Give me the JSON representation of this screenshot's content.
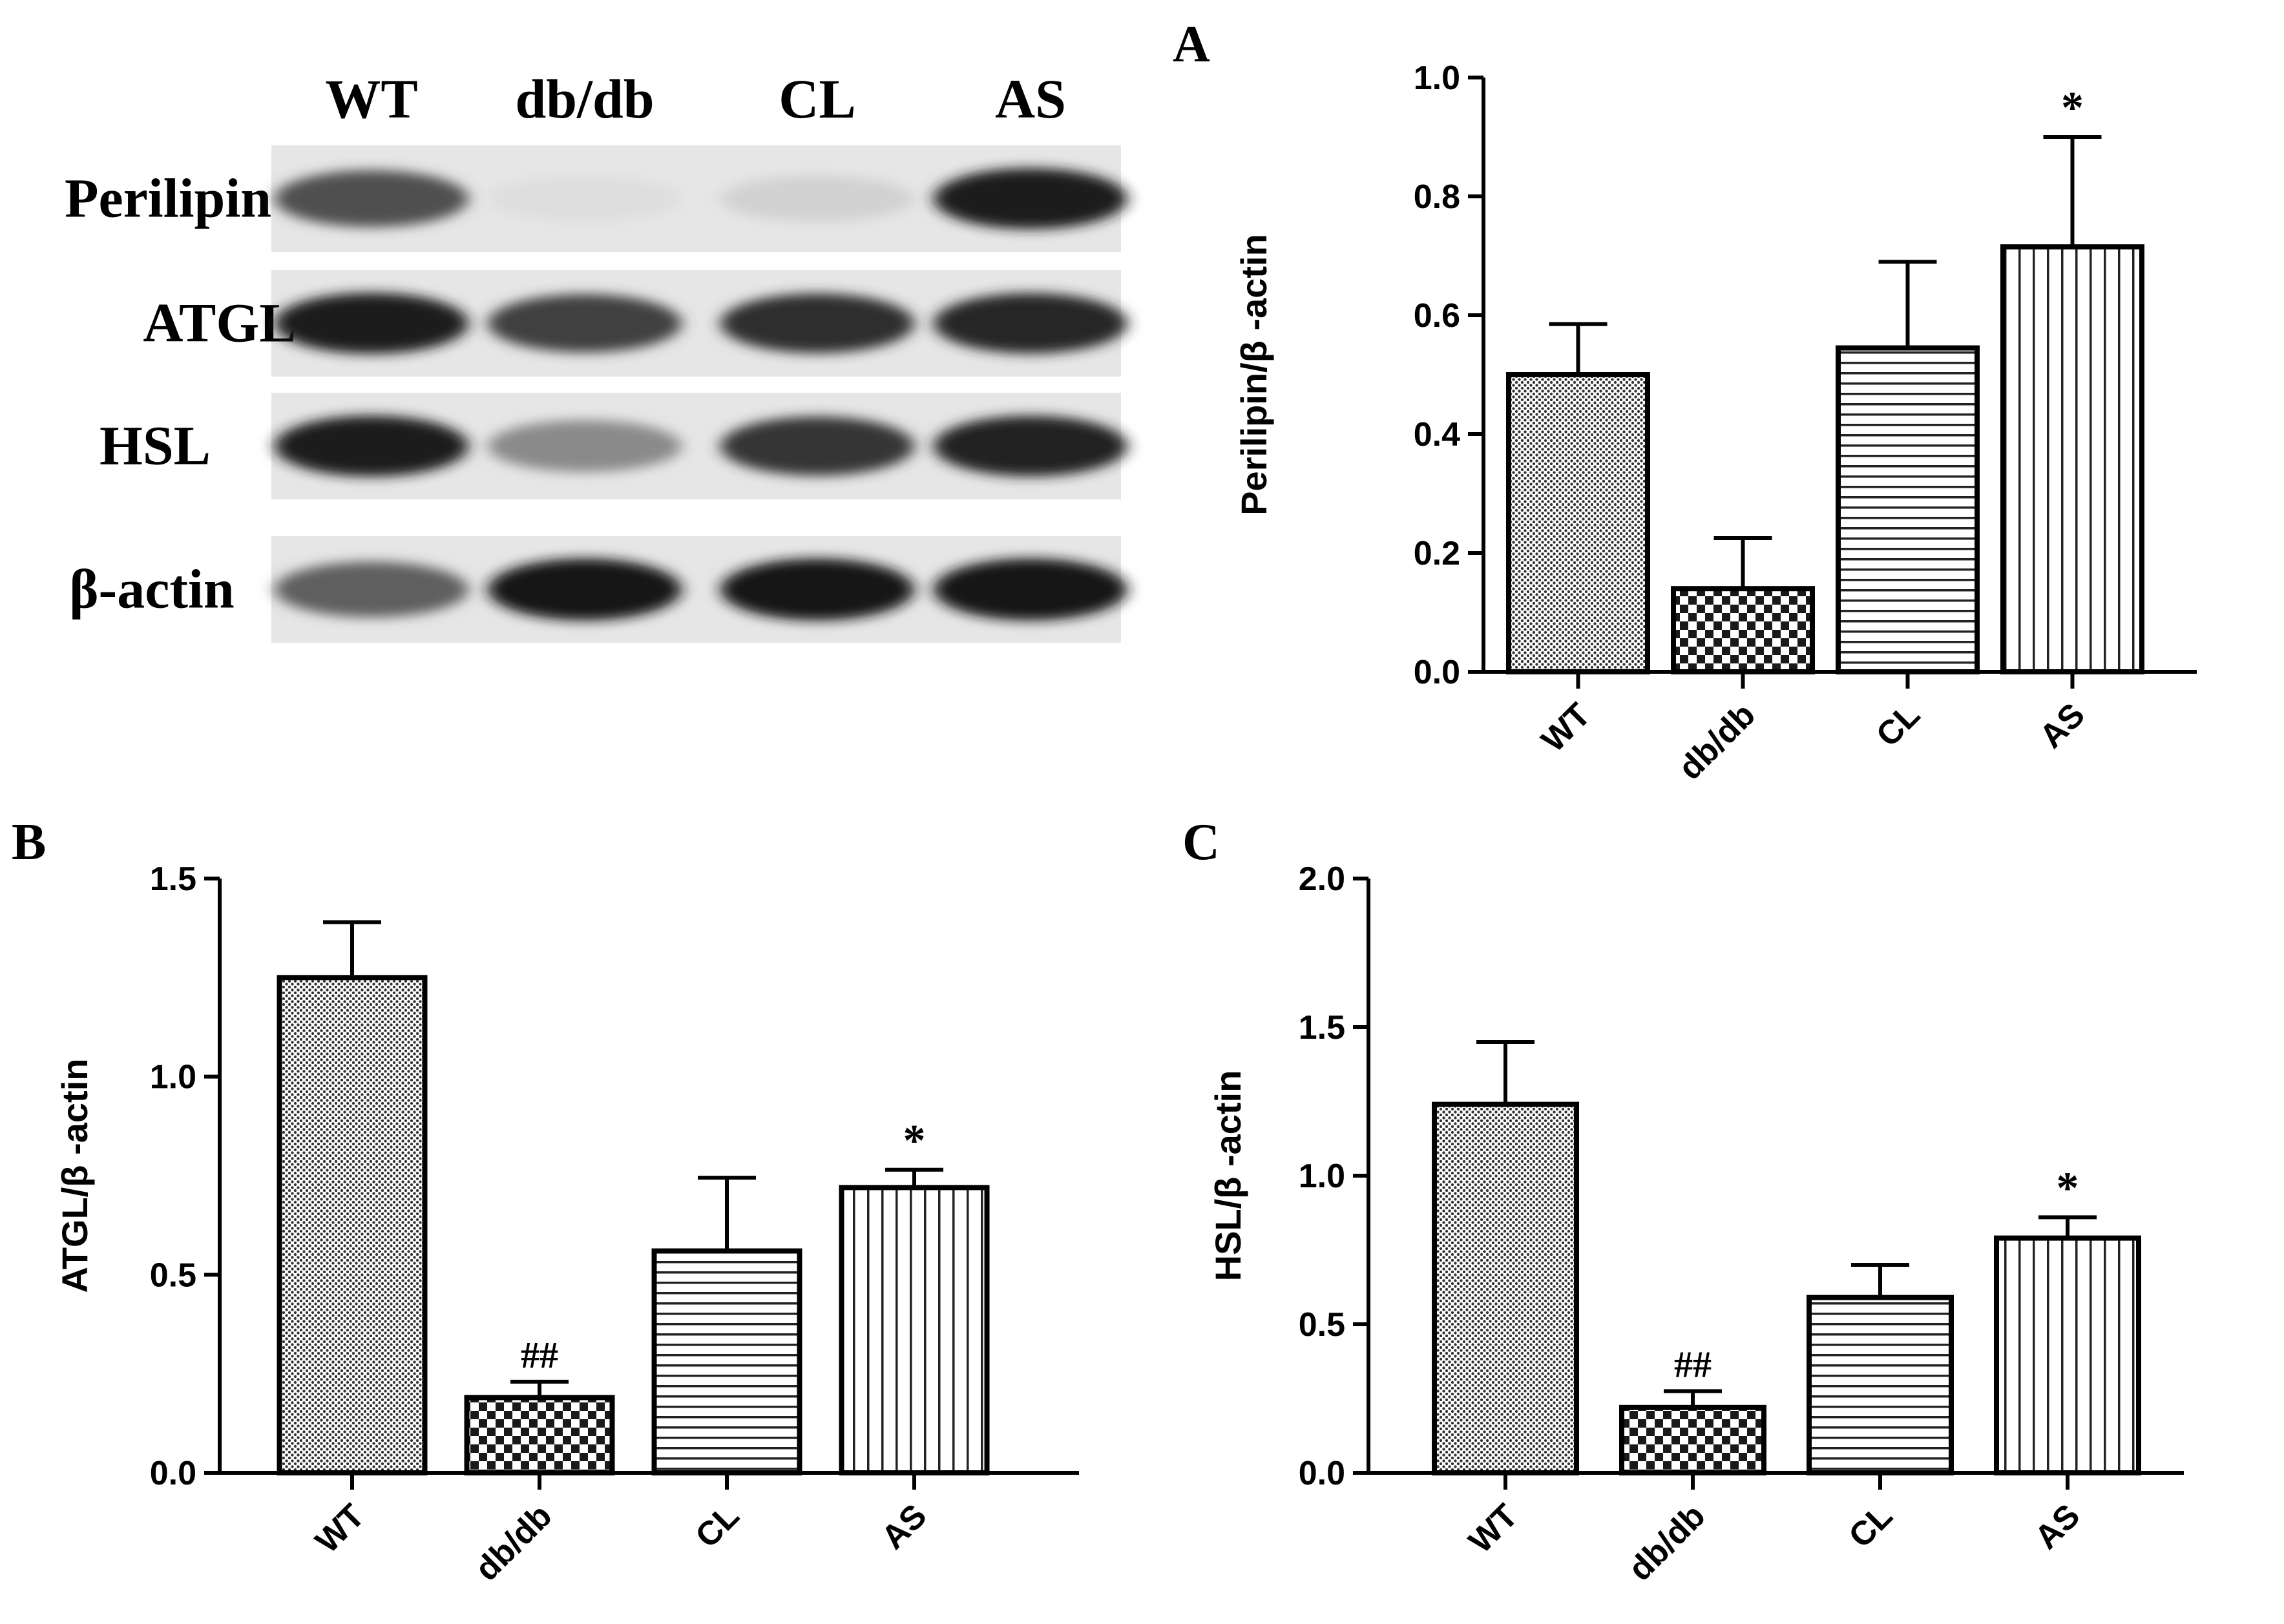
{
  "blot": {
    "lanes": [
      "WT",
      "db/db",
      "CL",
      "AS"
    ],
    "proteins": [
      {
        "name": "Perilipin",
        "intensity": [
          0.72,
          0.06,
          0.12,
          0.95
        ]
      },
      {
        "name": "ATGL",
        "intensity": [
          0.95,
          0.8,
          0.88,
          0.92
        ]
      },
      {
        "name": "HSL",
        "intensity": [
          0.95,
          0.45,
          0.85,
          0.93
        ]
      },
      {
        "name": "β-actin",
        "intensity": [
          0.65,
          1.0,
          1.0,
          1.0
        ]
      }
    ]
  },
  "chart_data": [
    {
      "panel": "A",
      "type": "bar",
      "categories": [
        "WT",
        "db/db",
        "CL",
        "AS"
      ],
      "values": [
        0.5,
        0.14,
        0.545,
        0.715
      ],
      "errors": [
        0.085,
        0.085,
        0.145,
        0.185
      ],
      "annotations": [
        "",
        "",
        "",
        "*"
      ],
      "ylabel": "Perilipin/β -actin",
      "ylim": [
        0,
        1.0
      ],
      "yticks": [
        "0.0",
        "0.2",
        "0.4",
        "0.6",
        "0.8",
        "1.0"
      ],
      "patterns": [
        "dots",
        "checker",
        "hlines",
        "vlines"
      ]
    },
    {
      "panel": "B",
      "type": "bar",
      "categories": [
        "WT",
        "db/db",
        "CL",
        "AS"
      ],
      "values": [
        1.25,
        0.19,
        0.56,
        0.72
      ],
      "errors": [
        0.14,
        0.04,
        0.185,
        0.045
      ],
      "annotations": [
        "",
        "##",
        "",
        "*"
      ],
      "ylabel": "ATGL/β -actin",
      "ylim": [
        0,
        1.5
      ],
      "yticks": [
        "0.0",
        "0.5",
        "1.0",
        "1.5"
      ],
      "patterns": [
        "dots",
        "checker",
        "hlines",
        "vlines"
      ]
    },
    {
      "panel": "C",
      "type": "bar",
      "categories": [
        "WT",
        "db/db",
        "CL",
        "AS"
      ],
      "values": [
        1.24,
        0.22,
        0.59,
        0.79
      ],
      "errors": [
        0.21,
        0.055,
        0.11,
        0.07
      ],
      "annotations": [
        "",
        "##",
        "",
        "*"
      ],
      "ylabel": "HSL/β -actin",
      "ylim": [
        0,
        2.0
      ],
      "yticks": [
        "0.0",
        "0.5",
        "1.0",
        "1.5",
        "2.0"
      ],
      "patterns": [
        "dots",
        "checker",
        "hlines",
        "vlines"
      ]
    }
  ]
}
